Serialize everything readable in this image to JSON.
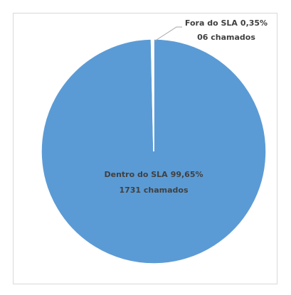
{
  "chart_data": {
    "type": "pie",
    "categories": [
      "Dentro do SLA",
      "Fora do SLA"
    ],
    "values": [
      99.65,
      0.35
    ],
    "value_labels": [
      "99,65%",
      "0,35%"
    ],
    "counts": [
      1731,
      6
    ],
    "count_labels": [
      "1731 chamados",
      "06 chamados"
    ],
    "colors": [
      "#5b9bd5",
      "#ffffff"
    ]
  }
}
